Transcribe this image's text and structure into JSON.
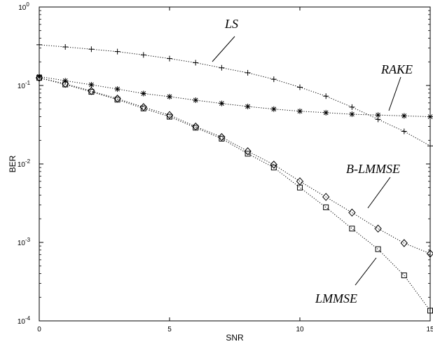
{
  "chart_data": {
    "type": "line",
    "xlabel": "SNR",
    "ylabel": "BER",
    "xlim": [
      0,
      15
    ],
    "ylim": [
      0.0001,
      1
    ],
    "yscale": "log",
    "grid": false,
    "x_ticks": [
      0,
      5,
      10,
      15
    ],
    "x_tick_labels": [
      "0",
      "5",
      "10",
      "15"
    ],
    "y_ticks": [
      0.0001,
      0.001,
      0.01,
      0.1,
      1
    ],
    "y_tick_labels": [
      {
        "base": "10",
        "exp": "-4"
      },
      {
        "base": "10",
        "exp": "-3"
      },
      {
        "base": "10",
        "exp": "-2"
      },
      {
        "base": "10",
        "exp": "-1"
      },
      {
        "base": "10",
        "exp": "0"
      }
    ],
    "x": [
      0,
      1,
      2,
      3,
      4,
      5,
      6,
      7,
      8,
      9,
      10,
      11,
      12,
      13,
      14,
      15
    ],
    "series": [
      {
        "name": "LS",
        "marker": "plus",
        "values": [
          0.33,
          0.31,
          0.29,
          0.27,
          0.245,
          0.22,
          0.195,
          0.168,
          0.145,
          0.12,
          0.095,
          0.073,
          0.053,
          0.037,
          0.026,
          0.017
        ]
      },
      {
        "name": "RAKE",
        "marker": "star",
        "values": [
          0.13,
          0.115,
          0.102,
          0.09,
          0.079,
          0.072,
          0.065,
          0.059,
          0.054,
          0.05,
          0.047,
          0.045,
          0.043,
          0.042,
          0.041,
          0.04
        ]
      },
      {
        "name": "B-LMMSE",
        "marker": "diamond",
        "values": [
          0.125,
          0.105,
          0.085,
          0.068,
          0.053,
          0.042,
          0.03,
          0.022,
          0.0145,
          0.0098,
          0.006,
          0.0038,
          0.0024,
          0.0015,
          0.00098,
          0.00072
        ]
      },
      {
        "name": "LMMSE",
        "marker": "square",
        "values": [
          0.125,
          0.103,
          0.083,
          0.066,
          0.051,
          0.04,
          0.029,
          0.021,
          0.0135,
          0.009,
          0.005,
          0.0028,
          0.0015,
          0.00082,
          0.00038,
          0.000135
        ]
      }
    ]
  }
}
